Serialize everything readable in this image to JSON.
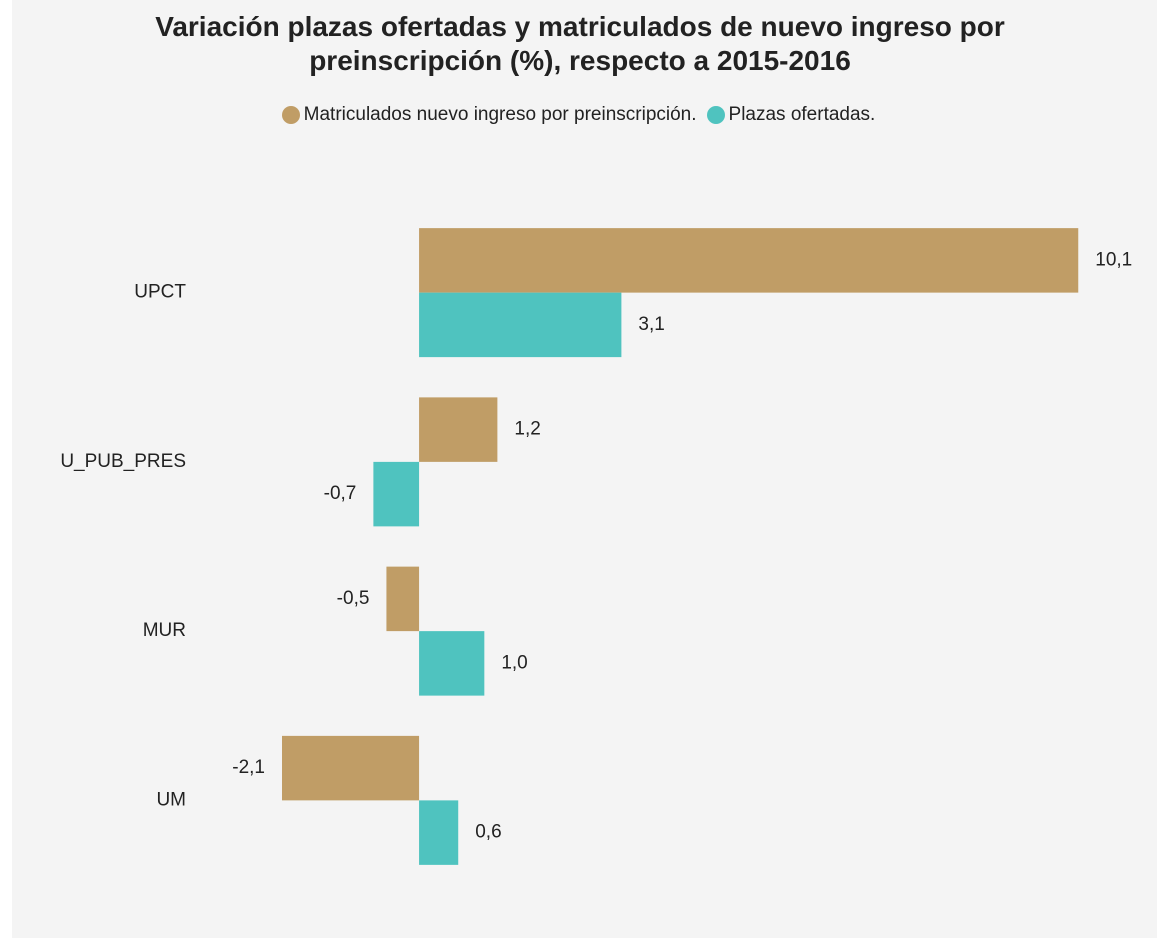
{
  "chart_data": {
    "type": "hbar",
    "title": "Variación plazas ofertadas y matriculados de nuevo ingreso por preinscripción (%), respecto a 2015-2016",
    "categories": [
      "UPCT",
      "U_PUB_PRES",
      "MUR",
      "UM"
    ],
    "series": [
      {
        "name": "Matriculados nuevo ingreso por preinscripción.",
        "color": "#c09d66",
        "values": [
          10.1,
          1.2,
          -0.5,
          -2.1
        ],
        "value_labels": [
          "10,1",
          "1,2",
          "-0,5",
          "-2,1"
        ]
      },
      {
        "name": "Plazas ofertadas.",
        "color": "#4fc3bf",
        "values": [
          3.1,
          -0.7,
          1.0,
          0.6
        ],
        "value_labels": [
          "3,1",
          "-0,7",
          "1,0",
          "0,6"
        ]
      }
    ],
    "xlim": [
      -4,
      11
    ],
    "legend": "top"
  }
}
